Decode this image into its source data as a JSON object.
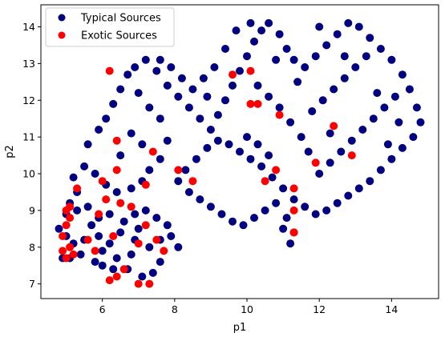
{
  "chart_data": {
    "type": "scatter",
    "title": "",
    "xlabel": "p1",
    "ylabel": "p2",
    "xlim": [
      4.3,
      15.3
    ],
    "ylim": [
      6.6,
      14.6
    ],
    "xticks": [
      6,
      8,
      10,
      12,
      14
    ],
    "yticks": [
      7,
      8,
      9,
      10,
      11,
      12,
      13,
      14
    ],
    "legend_position": "top-left",
    "series": [
      {
        "name": "Typical Sources",
        "color": "#000080",
        "points": [
          [
            4.9,
            7.7
          ],
          [
            5.1,
            7.7
          ],
          [
            5.4,
            7.8
          ],
          [
            5.8,
            7.6
          ],
          [
            6.0,
            7.5
          ],
          [
            6.3,
            7.4
          ],
          [
            6.7,
            7.4
          ],
          [
            7.1,
            7.2
          ],
          [
            7.4,
            7.3
          ],
          [
            7.6,
            7.6
          ],
          [
            5.2,
            8.1
          ],
          [
            5.5,
            8.2
          ],
          [
            5.9,
            8.3
          ],
          [
            6.2,
            8.1
          ],
          [
            6.5,
            8.4
          ],
          [
            6.9,
            8.2
          ],
          [
            7.3,
            8.0
          ],
          [
            7.6,
            8.2
          ],
          [
            7.9,
            8.3
          ],
          [
            8.1,
            8.0
          ],
          [
            4.8,
            8.5
          ],
          [
            5.0,
            8.9
          ],
          [
            5.1,
            9.2
          ],
          [
            5.3,
            9.5
          ],
          [
            5.6,
            9.1
          ],
          [
            5.9,
            8.8
          ],
          [
            6.2,
            8.9
          ],
          [
            6.6,
            8.7
          ],
          [
            6.9,
            8.9
          ],
          [
            7.2,
            9.0
          ],
          [
            7.5,
            8.8
          ],
          [
            7.8,
            8.6
          ],
          [
            5.2,
            9.9
          ],
          [
            5.5,
            10.2
          ],
          [
            5.8,
            10.0
          ],
          [
            6.1,
            9.7
          ],
          [
            6.4,
            9.5
          ],
          [
            6.8,
            9.6
          ],
          [
            7.1,
            9.8
          ],
          [
            7.3,
            10.1
          ],
          [
            7.6,
            10.4
          ],
          [
            7.8,
            10.9
          ],
          [
            5.6,
            10.8
          ],
          [
            5.9,
            11.2
          ],
          [
            6.1,
            11.5
          ],
          [
            6.3,
            11.9
          ],
          [
            6.5,
            12.3
          ],
          [
            6.7,
            12.7
          ],
          [
            6.9,
            12.9
          ],
          [
            7.2,
            13.1
          ],
          [
            7.5,
            12.8
          ],
          [
            7.8,
            12.4
          ],
          [
            8.1,
            12.1
          ],
          [
            8.4,
            11.8
          ],
          [
            8.7,
            11.5
          ],
          [
            9.0,
            11.2
          ],
          [
            9.2,
            11.6
          ],
          [
            9.4,
            12.0
          ],
          [
            9.6,
            12.4
          ],
          [
            9.8,
            12.8
          ],
          [
            10.0,
            13.2
          ],
          [
            10.2,
            13.6
          ],
          [
            10.4,
            13.9
          ],
          [
            10.6,
            14.1
          ],
          [
            10.9,
            13.8
          ],
          [
            11.1,
            13.4
          ],
          [
            11.3,
            13.1
          ],
          [
            11.6,
            12.9
          ],
          [
            11.9,
            13.2
          ],
          [
            12.2,
            13.5
          ],
          [
            12.5,
            13.8
          ],
          [
            12.8,
            14.1
          ],
          [
            13.1,
            14.0
          ],
          [
            13.4,
            13.7
          ],
          [
            13.7,
            13.4
          ],
          [
            14.0,
            13.1
          ],
          [
            14.3,
            12.7
          ],
          [
            14.5,
            12.3
          ],
          [
            14.7,
            11.8
          ],
          [
            14.8,
            11.4
          ],
          [
            14.6,
            11.0
          ],
          [
            14.3,
            10.7
          ],
          [
            14.0,
            10.4
          ],
          [
            13.7,
            10.1
          ],
          [
            13.4,
            9.8
          ],
          [
            13.1,
            9.6
          ],
          [
            12.8,
            9.4
          ],
          [
            12.5,
            9.2
          ],
          [
            12.2,
            9.0
          ],
          [
            11.9,
            8.9
          ],
          [
            11.6,
            9.1
          ],
          [
            11.3,
            9.3
          ],
          [
            11.0,
            9.6
          ],
          [
            10.7,
            9.9
          ],
          [
            10.4,
            10.2
          ],
          [
            10.1,
            10.4
          ],
          [
            9.8,
            10.6
          ],
          [
            9.5,
            10.8
          ],
          [
            9.2,
            10.9
          ],
          [
            8.9,
            10.7
          ],
          [
            8.6,
            10.4
          ],
          [
            8.3,
            10.1
          ],
          [
            8.1,
            9.8
          ],
          [
            8.4,
            9.5
          ],
          [
            8.7,
            9.3
          ],
          [
            9.0,
            9.1
          ],
          [
            9.3,
            8.9
          ],
          [
            9.6,
            8.7
          ],
          [
            9.9,
            8.6
          ],
          [
            10.2,
            8.8
          ],
          [
            10.5,
            9.0
          ],
          [
            10.8,
            9.2
          ],
          [
            11.1,
            8.8
          ],
          [
            11.3,
            8.4
          ],
          [
            11.2,
            8.1
          ],
          [
            11.0,
            8.5
          ],
          [
            12.0,
            10.0
          ],
          [
            12.3,
            10.3
          ],
          [
            12.6,
            10.6
          ],
          [
            12.9,
            10.9
          ],
          [
            13.2,
            11.2
          ],
          [
            13.5,
            11.5
          ],
          [
            13.8,
            11.8
          ],
          [
            14.1,
            12.1
          ],
          [
            11.5,
            11.0
          ],
          [
            11.2,
            11.4
          ],
          [
            10.9,
            11.8
          ],
          [
            10.6,
            12.1
          ],
          [
            10.3,
            12.4
          ],
          [
            11.8,
            11.7
          ],
          [
            12.1,
            12.0
          ],
          [
            12.4,
            12.3
          ],
          [
            12.7,
            12.6
          ],
          [
            13.0,
            12.9
          ],
          [
            13.3,
            13.2
          ],
          [
            10.0,
            11.0
          ],
          [
            10.3,
            10.8
          ],
          [
            10.6,
            10.5
          ],
          [
            9.1,
            12.9
          ],
          [
            8.8,
            12.6
          ],
          [
            8.5,
            12.3
          ],
          [
            8.2,
            12.6
          ],
          [
            7.9,
            12.9
          ],
          [
            7.6,
            13.1
          ],
          [
            7.0,
            12.2
          ],
          [
            7.3,
            11.8
          ],
          [
            7.6,
            11.5
          ],
          [
            6.8,
            11.1
          ],
          [
            7.1,
            10.8
          ],
          [
            6.5,
            10.5
          ],
          [
            5.3,
            9.0
          ],
          [
            5.7,
            8.6
          ],
          [
            6.0,
            7.9
          ],
          [
            6.4,
            7.7
          ],
          [
            6.8,
            7.8
          ],
          [
            7.0,
            8.5
          ],
          [
            5.0,
            8.3
          ],
          [
            9.7,
            13.9
          ],
          [
            10.1,
            14.1
          ],
          [
            12.0,
            14.0
          ],
          [
            12.7,
            13.2
          ],
          [
            13.6,
            12.2
          ],
          [
            14.2,
            11.4
          ],
          [
            13.9,
            10.8
          ],
          [
            12.3,
            11.1
          ],
          [
            11.7,
            10.6
          ],
          [
            11.4,
            12.5
          ],
          [
            10.8,
            13.1
          ],
          [
            9.4,
            13.4
          ],
          [
            8.9,
            12.1
          ]
        ]
      },
      {
        "name": "Exotic Sources",
        "color": "#ff0000",
        "points": [
          [
            4.9,
            7.9
          ],
          [
            5.0,
            7.7
          ],
          [
            5.1,
            8.0
          ],
          [
            5.2,
            7.8
          ],
          [
            4.9,
            8.3
          ],
          [
            5.0,
            8.6
          ],
          [
            5.1,
            8.8
          ],
          [
            5.0,
            9.0
          ],
          [
            5.1,
            9.1
          ],
          [
            5.3,
            9.6
          ],
          [
            5.6,
            8.2
          ],
          [
            5.8,
            7.9
          ],
          [
            5.9,
            8.9
          ],
          [
            6.1,
            9.3
          ],
          [
            6.3,
            8.3
          ],
          [
            6.5,
            9.2
          ],
          [
            6.8,
            9.1
          ],
          [
            7.0,
            8.1
          ],
          [
            7.2,
            8.6
          ],
          [
            7.5,
            8.2
          ],
          [
            7.7,
            7.9
          ],
          [
            6.2,
            7.1
          ],
          [
            6.4,
            7.2
          ],
          [
            6.6,
            7.4
          ],
          [
            7.0,
            7.0
          ],
          [
            7.3,
            7.0
          ],
          [
            6.0,
            9.8
          ],
          [
            6.4,
            10.1
          ],
          [
            7.2,
            9.7
          ],
          [
            7.4,
            10.6
          ],
          [
            6.4,
            10.9
          ],
          [
            8.1,
            10.1
          ],
          [
            8.5,
            9.8
          ],
          [
            9.6,
            12.7
          ],
          [
            10.1,
            11.9
          ],
          [
            10.1,
            12.8
          ],
          [
            10.3,
            11.9
          ],
          [
            10.5,
            9.8
          ],
          [
            10.8,
            10.1
          ],
          [
            10.9,
            11.6
          ],
          [
            11.3,
            9.6
          ],
          [
            11.3,
            9.0
          ],
          [
            11.3,
            8.4
          ],
          [
            11.9,
            10.3
          ],
          [
            12.4,
            11.3
          ],
          [
            12.9,
            10.5
          ],
          [
            6.2,
            12.8
          ]
        ]
      }
    ]
  }
}
